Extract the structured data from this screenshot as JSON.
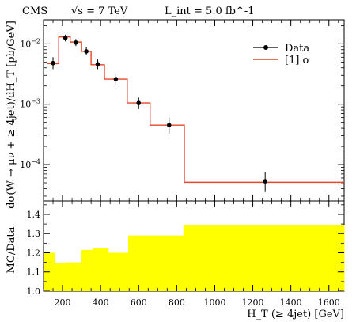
{
  "header": {
    "experiment": "CMS",
    "energy": "√s = 7 TeV",
    "lumi": "L_int = 5.0 fb^-1"
  },
  "legend": {
    "data_label": "Data",
    "mc_label": "[1] o"
  },
  "colors": {
    "mc_line": "#e8462a",
    "ratio_band": "#ffff00",
    "data_marker": "#000000"
  },
  "chart_data": [
    {
      "type": "line",
      "panel": "main",
      "ylabel": "dσ(W → μν + ≥ 4jet)/dH_T [pb/GeV]",
      "yscale": "log",
      "ylim": [
        2.5e-05,
        0.025
      ],
      "xlim": [
        100,
        1680
      ],
      "y_tick_labels": [
        "10^-2",
        "10^-3",
        "10^-4"
      ],
      "series": [
        {
          "name": "Data",
          "kind": "points",
          "x": [
            150,
            215,
            270,
            325,
            385,
            480,
            600,
            760,
            1265
          ],
          "y": [
            0.0048,
            0.0125,
            0.0105,
            0.0075,
            0.0046,
            0.0026,
            0.00105,
            0.00045,
            5.3e-05
          ],
          "err_low": [
            0.001,
            0.0015,
            0.0013,
            0.001,
            0.0008,
            0.0005,
            0.00022,
            0.00012,
            1.8e-05
          ],
          "err_high": [
            0.0012,
            0.0017,
            0.0015,
            0.0012,
            0.0009,
            0.0006,
            0.00024,
            0.00015,
            2.2e-05
          ]
        },
        {
          "name": "[1] o",
          "kind": "step",
          "bin_edges": [
            120,
            180,
            240,
            300,
            350,
            420,
            540,
            660,
            840,
            1680
          ],
          "values": [
            0.0047,
            0.013,
            0.0107,
            0.0075,
            0.0045,
            0.0026,
            0.00105,
            0.00045,
            5.1e-05
          ]
        }
      ]
    },
    {
      "type": "area",
      "panel": "ratio",
      "ylabel": "MC/Data",
      "xlabel": "H_T (≥ 4jet) [GeV]",
      "ylim": [
        1.0,
        1.47
      ],
      "xlim": [
        100,
        1680
      ],
      "x_ticks": [
        200,
        400,
        600,
        800,
        1000,
        1200,
        1400,
        1600
      ],
      "y_ticks": [
        1.0,
        1.1,
        1.2,
        1.3,
        1.4
      ],
      "bin_edges": [
        100,
        160,
        215,
        300,
        360,
        440,
        545,
        650,
        835,
        1680
      ],
      "values": [
        1.2,
        1.145,
        1.15,
        1.215,
        1.225,
        1.2,
        1.29,
        1.29,
        1.345
      ]
    }
  ]
}
